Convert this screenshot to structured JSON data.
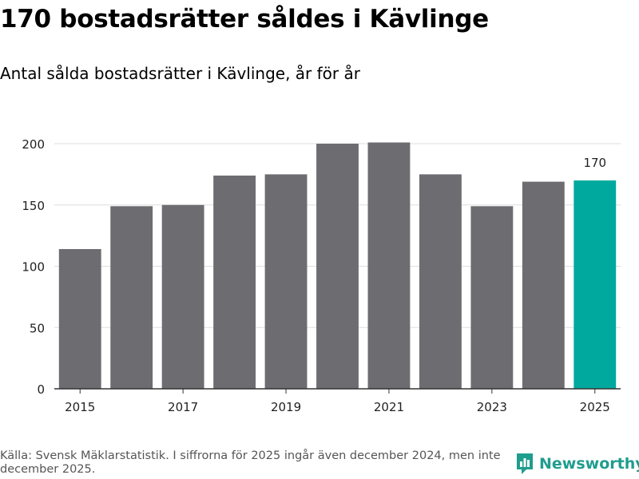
{
  "header": {
    "title": "170 bostadsrätter såldes i Kävlinge",
    "subtitle": "Antal sålda bostadsrätter i Kävlinge, år för år"
  },
  "footer": {
    "source": "Källa: Svensk Mäklarstatistik. I siffrorna för 2025 ingår även december 2024, men inte december 2025.",
    "brand": "Newsworthy",
    "brand_icon": "newsworthy-logo-icon"
  },
  "colors": {
    "bar": "#6d6c71",
    "highlight": "#00a99d",
    "grid": "#dddddd",
    "axis": "#333333",
    "text": "#222222",
    "brand": "#1f9d8e"
  },
  "chart_data": {
    "type": "bar",
    "title": "Antal sålda bostadsrätter i Kävlinge, år för år",
    "xlabel": "",
    "ylabel": "",
    "categories": [
      "2015",
      "2016",
      "2017",
      "2018",
      "2019",
      "2020",
      "2021",
      "2022",
      "2023",
      "2024",
      "2025"
    ],
    "values": [
      114,
      149,
      150,
      174,
      175,
      200,
      201,
      175,
      149,
      169,
      170
    ],
    "highlight_index": 10,
    "annotations": [
      {
        "category": "2025",
        "text": "170"
      }
    ],
    "x_tick_labels": [
      "2015",
      "2017",
      "2019",
      "2021",
      "2023",
      "2025"
    ],
    "y_ticks": [
      0,
      50,
      100,
      150,
      200
    ],
    "ylim": [
      0,
      215
    ],
    "grid": true,
    "legend": "none"
  }
}
